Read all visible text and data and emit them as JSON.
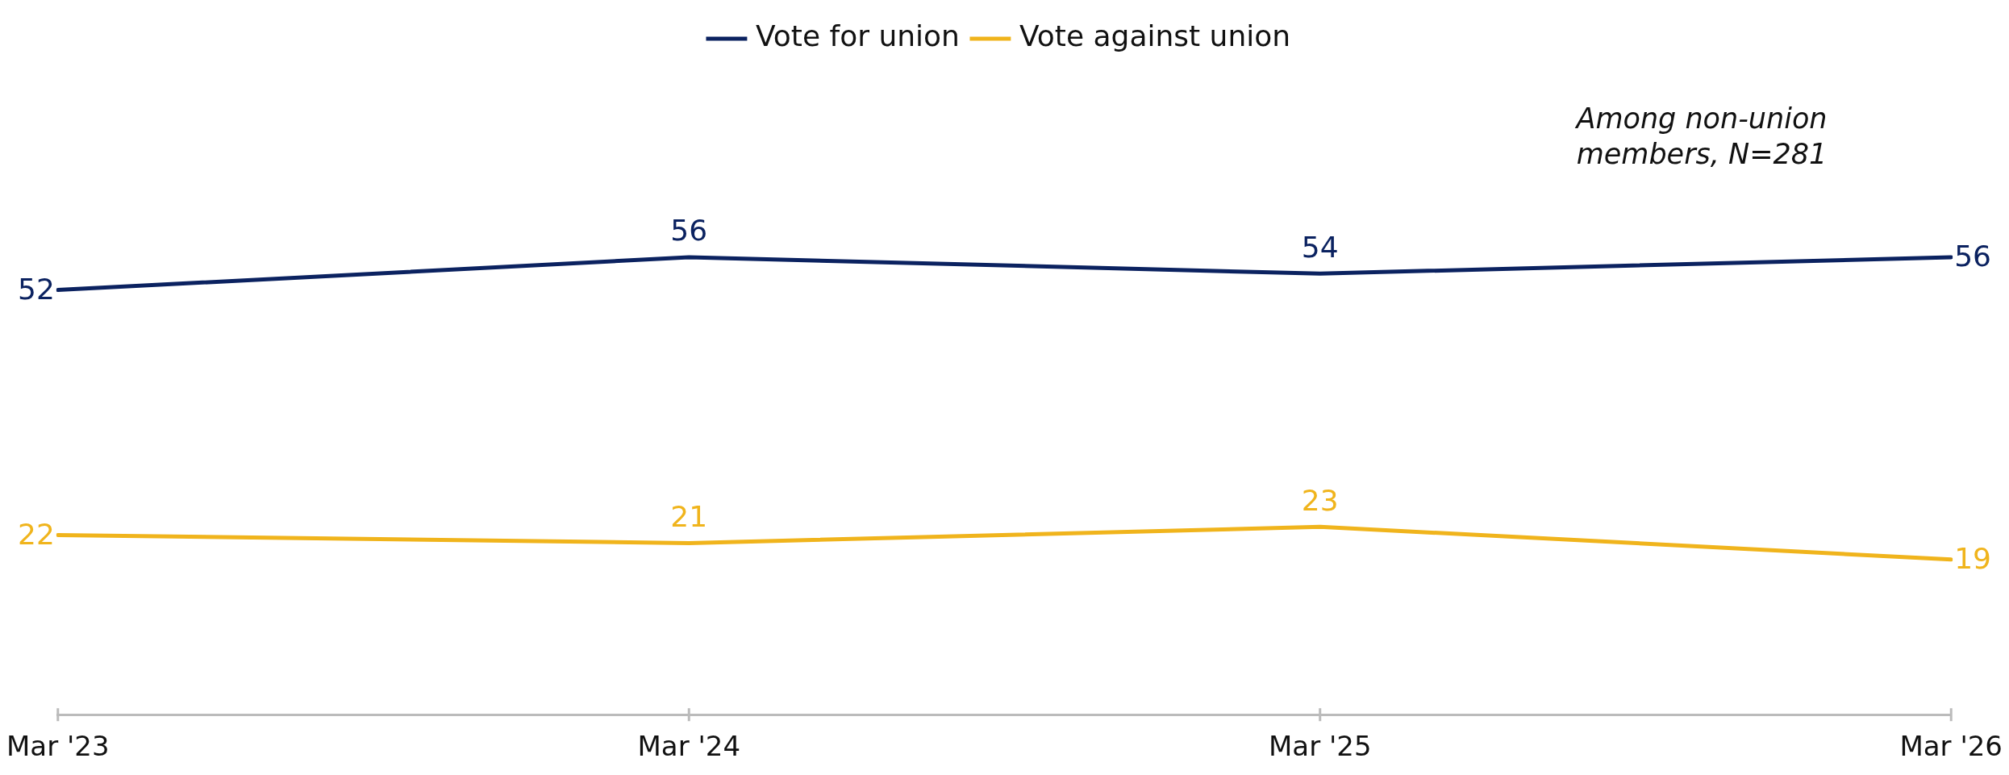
{
  "chart_data": {
    "type": "line",
    "categories": [
      "Mar '23",
      "Mar '24",
      "Mar '25",
      "Mar '26"
    ],
    "series": [
      {
        "name": "Vote for union",
        "color": "#0b2260",
        "values": [
          52,
          56,
          54,
          56
        ]
      },
      {
        "name": "Vote against union",
        "color": "#f0b41c",
        "values": [
          22,
          21,
          23,
          19
        ]
      }
    ],
    "tick_labels": "x",
    "data_labels": true,
    "legend": "top",
    "grid": false,
    "marker": "none",
    "line_style": "solid",
    "annotations": [
      "Among non-union members, N=281"
    ]
  }
}
